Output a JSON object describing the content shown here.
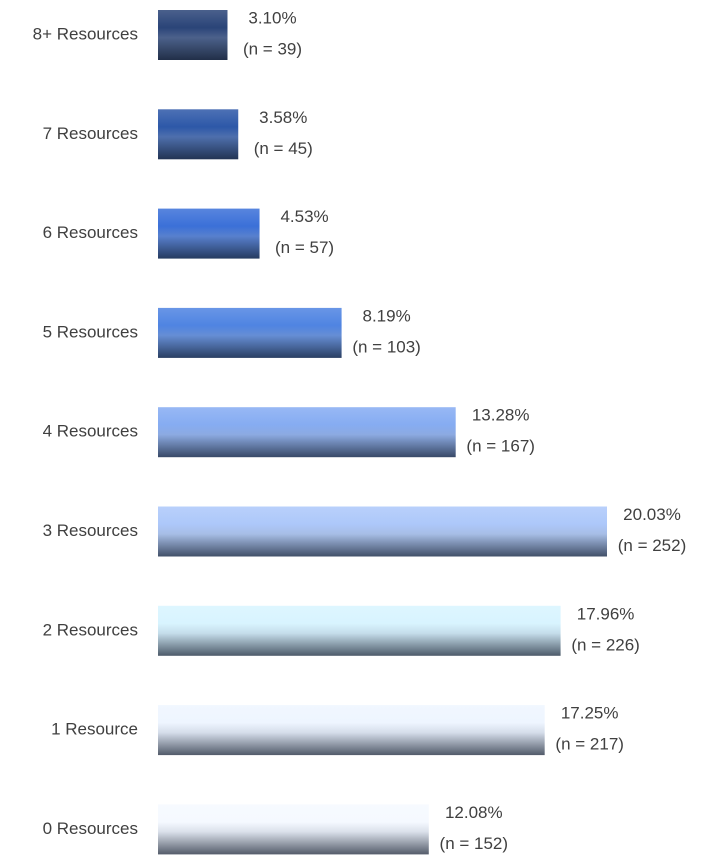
{
  "chart_data": {
    "type": "barh",
    "categories": [
      "8+ Resources",
      "7 Resources",
      "6 Resources",
      "5 Resources",
      "4 Resources",
      "3 Resources",
      "2 Resources",
      "1 Resource",
      "0 Resources"
    ],
    "values": [
      3.1,
      3.58,
      4.53,
      8.19,
      13.28,
      20.03,
      17.96,
      17.25,
      12.08
    ],
    "value_labels": [
      "3.10%",
      "3.58%",
      "4.53%",
      "8.19%",
      "13.28%",
      "20.03%",
      "17.96%",
      "17.25%",
      "12.08%"
    ],
    "count_labels": [
      "(n = 39)",
      "(n = 45)",
      "(n = 57)",
      "(n = 103)",
      "(n = 167)",
      "(n = 252)",
      "(n = 226)",
      "(n = 217)",
      "(n = 152)"
    ],
    "colors": [
      "#2a4478",
      "#2d58a8",
      "#3b70d8",
      "#4f84e2",
      "#86acf2",
      "#adc8fa",
      "#d8f4ff",
      "#eef5ff",
      "#f5f9ff"
    ]
  }
}
